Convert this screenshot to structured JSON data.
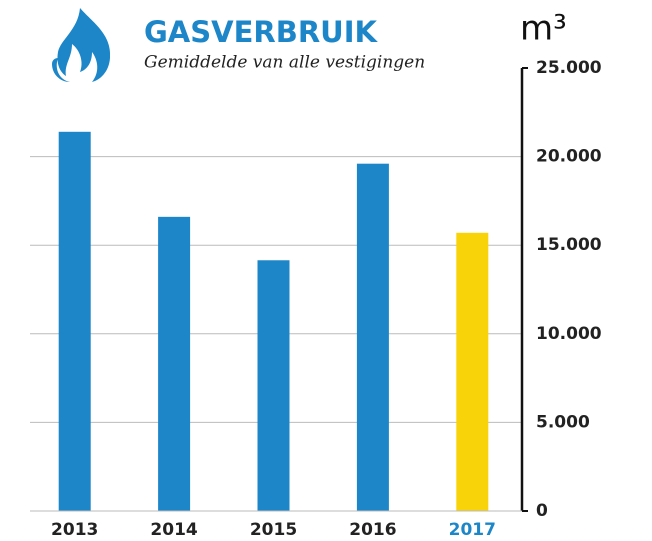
{
  "chart_data": {
    "type": "bar",
    "title": "GASVERBRUIK",
    "subtitle": "Gemiddelde van alle vestigingen",
    "unit": "m³",
    "categories": [
      "2013",
      "2014",
      "2015",
      "2016",
      "2017"
    ],
    "values": [
      21400,
      16600,
      14150,
      19600,
      15700
    ],
    "colors": [
      "#1c86c8",
      "#1c86c8",
      "#1c86c8",
      "#1c86c8",
      "#f9d30a"
    ],
    "category_label_colors": [
      "#222222",
      "#222222",
      "#222222",
      "#222222",
      "#1c86c8"
    ],
    "ylim": [
      0,
      25000
    ],
    "yticks": [
      0,
      {
        "value": 5000,
        "label": "5.000"
      },
      {
        "value": 10000,
        "label": "10.000"
      },
      {
        "value": 15000,
        "label": "15.000"
      },
      {
        "value": 20000,
        "label": "20.000"
      },
      {
        "value": 25000,
        "label": "25.000"
      }
    ],
    "grid": true
  }
}
